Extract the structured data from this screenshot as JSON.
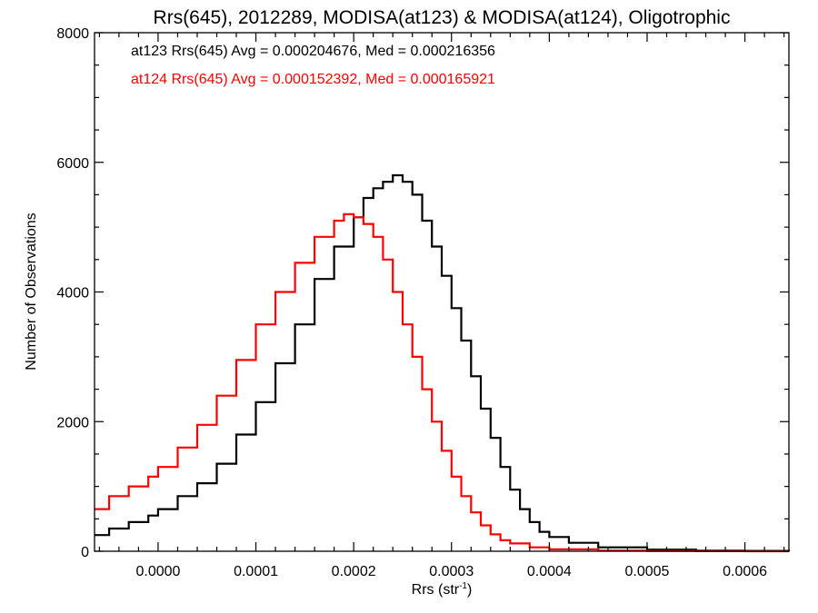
{
  "chart_data": {
    "type": "line",
    "title": "Rrs(645), 2012289, MODISA(at123) & MODISA(at124), Oligotrophic",
    "xlabel": "Rrs (str",
    "xlabel_superscript": "-1",
    "xlabel_suffix": ")",
    "ylabel": "Number of Observations",
    "xlim": [
      -6.5e-05,
      0.000645
    ],
    "ylim": [
      0,
      8000
    ],
    "x_ticks": [
      0.0,
      0.0001,
      0.0002,
      0.0003,
      0.0004,
      0.0005,
      0.0006
    ],
    "x_tick_labels": [
      "0.0000",
      "0.0001",
      "0.0002",
      "0.0003",
      "0.0004",
      "0.0005",
      "0.0006"
    ],
    "y_ticks": [
      0,
      2000,
      4000,
      6000,
      8000
    ],
    "y_tick_labels": [
      "0",
      "2000",
      "4000",
      "6000",
      "8000"
    ],
    "grid": false,
    "annotations": [
      {
        "text": "at123 Rrs(645) Avg = 0.000204676, Med = 0.000216356",
        "color": "#000000"
      },
      {
        "text": "at124 Rrs(645) Avg = 0.000152392, Med = 0.000165921",
        "color": "#ff0000"
      }
    ],
    "series": [
      {
        "color": "#000000",
        "x": [
          -7e-05,
          -5e-05,
          -3e-05,
          -1e-05,
          0.0,
          2e-05,
          4e-05,
          6e-05,
          8e-05,
          0.0001,
          0.00012,
          0.00014,
          0.00016,
          0.00018,
          0.0002,
          0.00021,
          0.00022,
          0.00023,
          0.00024,
          0.00025,
          0.00026,
          0.00027,
          0.00028,
          0.00029,
          0.0003,
          0.00031,
          0.00032,
          0.00033,
          0.00034,
          0.00035,
          0.00036,
          0.00037,
          0.00038,
          0.00039,
          0.0004,
          0.00042,
          0.00045,
          0.0005,
          0.00055,
          0.0006,
          0.00065
        ],
        "values": [
          250,
          350,
          450,
          550,
          650,
          850,
          1050,
          1350,
          1800,
          2300,
          2900,
          3500,
          4200,
          4700,
          5150,
          5450,
          5600,
          5700,
          5800,
          5700,
          5500,
          5100,
          4700,
          4250,
          3750,
          3250,
          2700,
          2200,
          1750,
          1300,
          950,
          650,
          450,
          300,
          220,
          130,
          60,
          25,
          10,
          5,
          0
        ]
      },
      {
        "color": "#ff0000",
        "x": [
          -7e-05,
          -5e-05,
          -3e-05,
          -1e-05,
          0.0,
          2e-05,
          4e-05,
          6e-05,
          8e-05,
          0.0001,
          0.00012,
          0.00014,
          0.00016,
          0.00018,
          0.00019,
          0.0002,
          0.00021,
          0.00022,
          0.00023,
          0.00024,
          0.00025,
          0.00026,
          0.00027,
          0.00028,
          0.00029,
          0.0003,
          0.00031,
          0.00032,
          0.00033,
          0.00034,
          0.00035,
          0.00036,
          0.00038,
          0.0004,
          0.00045,
          0.0005,
          0.00055,
          0.0006,
          0.00065
        ],
        "values": [
          650,
          850,
          1000,
          1150,
          1300,
          1600,
          1950,
          2400,
          2950,
          3500,
          4000,
          4450,
          4850,
          5100,
          5200,
          5150,
          5050,
          4850,
          4500,
          4000,
          3500,
          3000,
          2500,
          2000,
          1550,
          1150,
          850,
          600,
          400,
          260,
          170,
          120,
          60,
          30,
          10,
          5,
          2,
          0,
          0
        ]
      }
    ]
  }
}
